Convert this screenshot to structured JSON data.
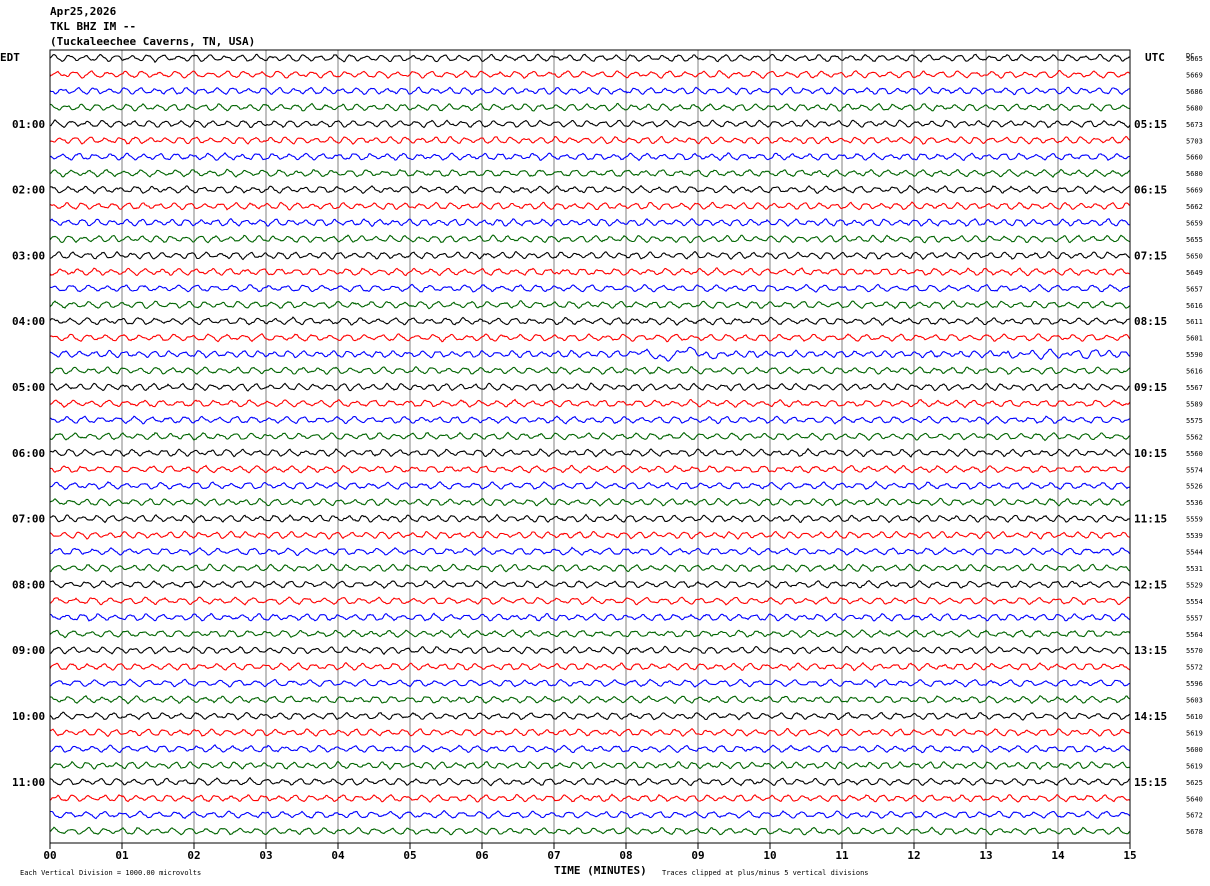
{
  "header": {
    "date": "Apr25,2026",
    "station": "TKL BHZ IM --",
    "location": "(Tuckaleechee Caverns, TN, USA)"
  },
  "left_axis_label": "EDT",
  "right_axis_label": "UTC",
  "dc_label": "DC",
  "footer": {
    "xlabel": "TIME (MINUTES)",
    "scale_note": "Each Vertical Division = 1000.00 microvolts",
    "clip_note": "Traces clipped at plus/minus 5 vertical divisions"
  },
  "colors": {
    "trace_cycle": [
      "#000000",
      "#ff0000",
      "#0000ff",
      "#006400"
    ],
    "grid": "#808080",
    "frame": "#000000"
  },
  "chart_data": {
    "type": "line",
    "title": "TKL BHZ IM --",
    "xlabel": "TIME (MINUTES)",
    "xlim": [
      0,
      15
    ],
    "x_ticks": [
      "00",
      "01",
      "02",
      "03",
      "04",
      "05",
      "06",
      "07",
      "08",
      "09",
      "10",
      "11",
      "12",
      "13",
      "14",
      "15"
    ],
    "grid": true,
    "traces_per_hour": 4,
    "edt_hour_labels": [
      "01:00",
      "02:00",
      "03:00",
      "04:00",
      "05:00",
      "06:00",
      "07:00",
      "08:00",
      "09:00",
      "10:00",
      "11:00"
    ],
    "utc_hour_labels": [
      "05:15",
      "06:15",
      "07:15",
      "08:15",
      "09:15",
      "10:15",
      "11:15",
      "12:15",
      "13:15",
      "14:15",
      "15:15"
    ],
    "dc_offsets": [
      5665,
      5669,
      5686,
      5680,
      5673,
      5703,
      5660,
      5680,
      5669,
      5662,
      5659,
      5655,
      5650,
      5649,
      5657,
      5616,
      5611,
      5601,
      5590,
      5616,
      5567,
      5589,
      5575,
      5562,
      5560,
      5574,
      5526,
      5536,
      5559,
      5539,
      5544,
      5531,
      5529,
      5554,
      5557,
      5564,
      5570,
      5572,
      5596,
      5603,
      5610,
      5619,
      5600,
      5619,
      5625,
      5640,
      5672,
      5678
    ],
    "event_trace_index": 18,
    "event_minutes": [
      8.0,
      9.4
    ]
  }
}
